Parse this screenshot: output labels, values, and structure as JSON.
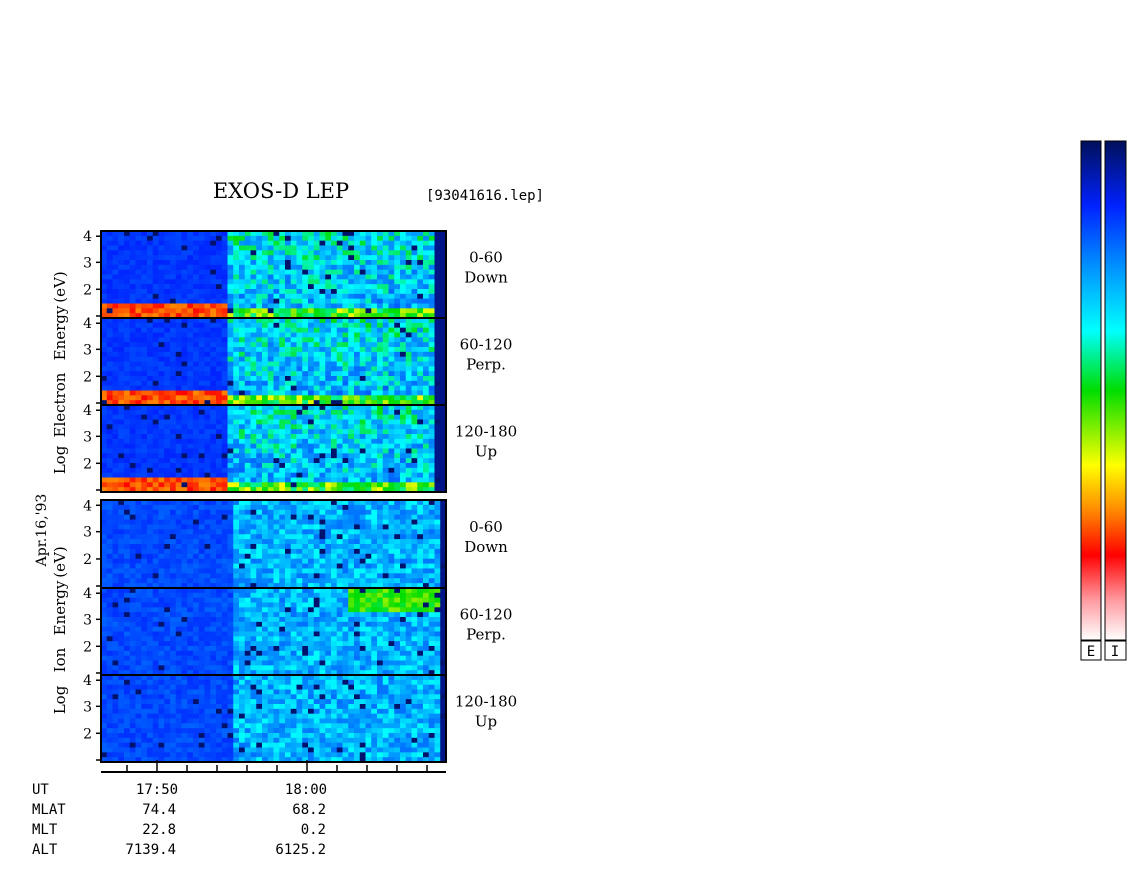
{
  "chart_data": {
    "type": "heatmap",
    "title": "EXOS-D LEP",
    "filename": "[93041616.lep]",
    "date_label": "Apr.16,'93",
    "electron_ylabel": [
      "Log",
      "Electron",
      "Energy",
      "(eV)"
    ],
    "ion_ylabel": [
      "Log",
      "Ion",
      "Energy",
      "(eV)"
    ],
    "yticks": [
      "2",
      "3",
      "4"
    ],
    "panels": [
      {
        "species": "electron",
        "pitch": "0-60",
        "dir": "Down"
      },
      {
        "species": "electron",
        "pitch": "60-120",
        "dir": "Perp."
      },
      {
        "species": "electron",
        "pitch": "120-180",
        "dir": "Up"
      },
      {
        "species": "ion",
        "pitch": "0-60",
        "dir": "Down"
      },
      {
        "species": "ion",
        "pitch": "60-120",
        "dir": "Perp."
      },
      {
        "species": "ion",
        "pitch": "120-180",
        "dir": "Up"
      }
    ],
    "orbit_table": {
      "row_labels": [
        "UT",
        "MLAT",
        "MLT",
        "ALT"
      ],
      "columns": [
        {
          "UT": "17:50",
          "MLAT": "74.4",
          "MLT": "22.8",
          "ALT": "7139.4"
        },
        {
          "UT": "18:00",
          "MLAT": "68.2",
          "MLT": "0.2",
          "ALT": "6125.2"
        }
      ]
    },
    "colorbars": [
      {
        "label": "E"
      },
      {
        "label": "I"
      }
    ]
  }
}
